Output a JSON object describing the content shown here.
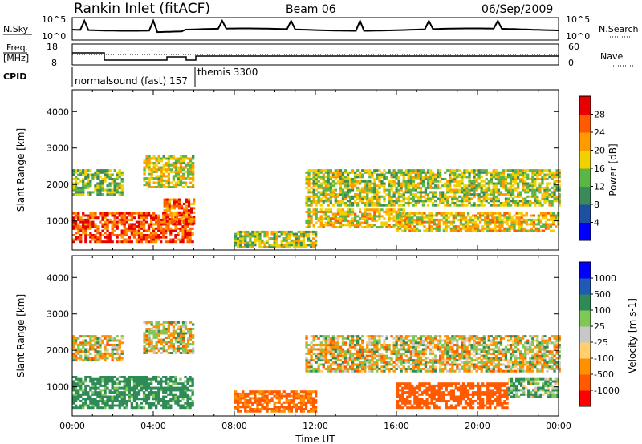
{
  "header": {
    "station": "Rankin Inlet (fitACF)",
    "beam": "Beam 06",
    "date": "06/Sep/2009"
  },
  "noise_panel": {
    "left_label": "N.Sky",
    "right_label": "N.Search",
    "left_ticks": [
      "10^5",
      "10^0"
    ],
    "right_ticks": [
      "10^5",
      "10^0"
    ]
  },
  "freq_panel": {
    "left_label_1": "Freq.",
    "left_label_2": "[MHz]",
    "right_label": "Nave",
    "left_ticks": [
      "18",
      "8"
    ],
    "right_ticks": [
      "60",
      "0"
    ]
  },
  "cpid": {
    "label": "CPID",
    "programs": [
      "normalsound (fast) 157",
      "themis 3300"
    ]
  },
  "colors": {
    "power_scale": [
      "#0000ff",
      "#1f4fa0",
      "#3b8a5a",
      "#5cb547",
      "#f2d100",
      "#ff9b00",
      "#ff5a00",
      "#e60000"
    ],
    "velocity_scale": [
      "#ff0000",
      "#ff5a00",
      "#ff9100",
      "#ffcf70",
      "#c8c8c8",
      "#7fc855",
      "#2e8b57",
      "#1f5ab4",
      "#0000ff"
    ]
  },
  "chart_data": [
    {
      "type": "heatmap",
      "title": "Power",
      "ylabel": "Slant Range [km]",
      "xlabel": "",
      "ylim": [
        200,
        4600
      ],
      "xlim": [
        0,
        24
      ],
      "yticks": [
        "1000",
        "2000",
        "3000",
        "4000"
      ],
      "colorbar_label": "Power [dB]",
      "colorbar_ticks": [
        "4",
        "8",
        "12",
        "16",
        "20",
        "24",
        "28"
      ],
      "colorbar_range": [
        0,
        32
      ],
      "approximate_echo_regions": [
        {
          "t": [
            0.0,
            6.0
          ],
          "range_km": [
            400,
            1200
          ],
          "level": 28
        },
        {
          "t": [
            0.0,
            2.5
          ],
          "range_km": [
            1700,
            2400
          ],
          "level": 14
        },
        {
          "t": [
            3.5,
            6.0
          ],
          "range_km": [
            1900,
            2800
          ],
          "level": 18
        },
        {
          "t": [
            4.5,
            6.0
          ],
          "range_km": [
            900,
            1600
          ],
          "level": 26
        },
        {
          "t": [
            8.0,
            12.0
          ],
          "range_km": [
            250,
            700
          ],
          "level": 16
        },
        {
          "t": [
            11.5,
            16.5
          ],
          "range_km": [
            800,
            1300
          ],
          "level": 20
        },
        {
          "t": [
            11.5,
            24.0
          ],
          "range_km": [
            1400,
            2400
          ],
          "level": 16
        },
        {
          "t": [
            16.0,
            24.0
          ],
          "range_km": [
            700,
            1200
          ],
          "level": 20
        }
      ]
    },
    {
      "type": "heatmap",
      "title": "Velocity",
      "ylabel": "Slant Range [km]",
      "xlabel": "Time UT",
      "ylim": [
        200,
        4600
      ],
      "xlim": [
        0,
        24
      ],
      "yticks": [
        "1000",
        "2000",
        "3000",
        "4000"
      ],
      "xticks": [
        "00:00",
        "04:00",
        "08:00",
        "12:00",
        "16:00",
        "20:00",
        "00:00"
      ],
      "colorbar_label": "Velocity [m s-1]",
      "colorbar_ticks": [
        "1000",
        "500",
        "100",
        "25",
        "-25",
        "-100",
        "-500",
        "-1000"
      ],
      "approximate_echo_regions": [
        {
          "t": [
            0.0,
            6.0
          ],
          "range_km": [
            400,
            1300
          ],
          "velocity": 200
        },
        {
          "t": [
            0.0,
            2.5
          ],
          "range_km": [
            1700,
            2400
          ],
          "velocity": 0
        },
        {
          "t": [
            3.5,
            6.0
          ],
          "range_km": [
            1900,
            2800
          ],
          "velocity": 0
        },
        {
          "t": [
            8.0,
            12.0
          ],
          "range_km": [
            300,
            900
          ],
          "velocity": -150
        },
        {
          "t": [
            11.5,
            24.0
          ],
          "range_km": [
            1400,
            2400
          ],
          "velocity": 0
        },
        {
          "t": [
            16.0,
            21.5
          ],
          "range_km": [
            400,
            1100
          ],
          "velocity": -300
        },
        {
          "t": [
            21.5,
            24.0
          ],
          "range_km": [
            700,
            1200
          ],
          "velocity": 100
        }
      ]
    }
  ]
}
